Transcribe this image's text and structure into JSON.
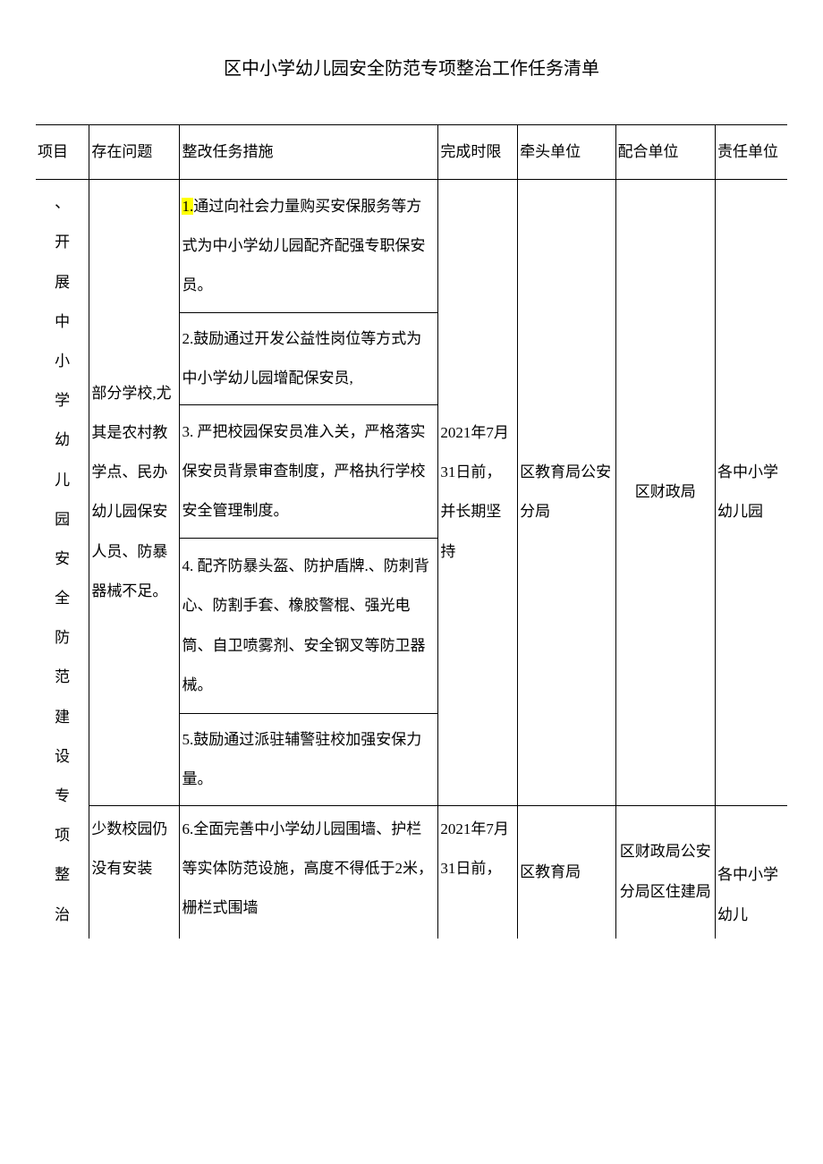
{
  "title": "区中小学幼儿园安全防范专项整治工作任务清单",
  "headers": {
    "project": "项目",
    "problem": "存在问题",
    "measure": "整改任务措施",
    "deadline": "完成时限",
    "lead": "牵头单位",
    "coop": "配合单位",
    "resp": "责任单位"
  },
  "project_label_part1": "、开展中小学幼儿园安全防范建设专项整治",
  "block1": {
    "problem": "部分学校,尤其是农村教学点、民办幼儿园保安人员、防暴器械不足。",
    "measures": {
      "m1_prefix": "1.",
      "m1_rest": "通过向社会力量购买安保服务等方式为中小学幼儿园配齐配强专职保安员。",
      "m2": "2.鼓励通过开发公益性岗位等方式为中小学幼儿园增配保安员,",
      "m3": "3. 严把校园保安员准入关，严格落实保安员背景审查制度，严格执行学校安全管理制度。",
      "m4": "4. 配齐防暴头盔、防护盾牌.、防刺背心、防割手套、橡胶警棍、强光电筒、自卫喷雾剂、安全钢叉等防卫器械。",
      "m5": "5.鼓励通过派驻辅警驻校加强安保力量。"
    },
    "deadline": "2021年7月31日前，并长期坚持",
    "lead": "区教育局公安分局",
    "coop": "区财政局",
    "resp": "各中小学幼儿园"
  },
  "block2": {
    "problem": "少数校园仍没有安装",
    "measure": "6.全面完善中小学幼儿园围墙、护栏等实体防范设施，高度不得低于2米，栅栏式围墙",
    "deadline": "2021年7月31日前，",
    "lead": "区教育局",
    "coop": "区财政局公安分局区住建局",
    "resp": "各中小学幼儿"
  },
  "columns": {
    "w1": 58,
    "w2": 98,
    "w3": 280,
    "w4": 86,
    "w5": 106,
    "w6": 108,
    "w7": 78
  }
}
